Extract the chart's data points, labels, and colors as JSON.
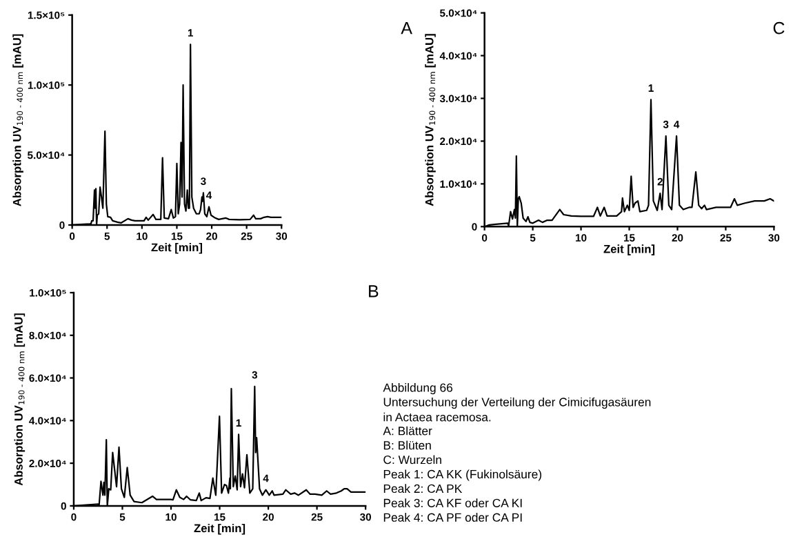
{
  "chart_data": [
    {
      "type": "line",
      "xlabel": "Zeit [min]",
      "ylabel": "Absorption UV$_{190 - 400 nm}$ [mAU]",
      "x": [
        0,
        2.5,
        2.7,
        2.8,
        3.0,
        3.2,
        3.3,
        3.4,
        3.5,
        3.6,
        3.8,
        4.0,
        4.2,
        4.4,
        4.7,
        4.9,
        5.1,
        5.5,
        5.8,
        6.5,
        7,
        8,
        8.5,
        9,
        10.3,
        10.6,
        10.9,
        11.6,
        12,
        12.7,
        12.95,
        13.2,
        13.8,
        14.2,
        14.5,
        14.8,
        15.0,
        15.2,
        15.4,
        15.6,
        15.75,
        15.9,
        16.1,
        16.3,
        16.5,
        16.65,
        16.8,
        16.95,
        17.15,
        17.4,
        17.8,
        18.2,
        18.4,
        18.6,
        18.7,
        18.8,
        19.0,
        19.3,
        19.6,
        19.9,
        20.5,
        21,
        22,
        22.5,
        24,
        25.5,
        26,
        26.3,
        27,
        27.5,
        28,
        28.5,
        30
      ],
      "series": [
        {
          "color": "#000000",
          "values": [
            0,
            800,
            900,
            3000,
            3000,
            25000,
            12000,
            26000,
            0,
            7000,
            8000,
            27000,
            20000,
            12000,
            67000,
            15000,
            6000,
            5500,
            3000,
            2000,
            1500,
            4500,
            3500,
            3000,
            3000,
            5500,
            3500,
            7500,
            4000,
            4000,
            48000,
            5000,
            4500,
            11000,
            5000,
            6000,
            44000,
            8000,
            15000,
            59000,
            20000,
            100000,
            15000,
            10000,
            25000,
            12000,
            12000,
            129000,
            20000,
            12000,
            8000,
            8000,
            11000,
            20000,
            17000,
            23000,
            8000,
            6000,
            13000,
            7000,
            5000,
            4000,
            5000,
            4000,
            3800,
            4000,
            7000,
            4500,
            4500,
            5500,
            6000,
            5500,
            5500
          ]
        }
      ],
      "xlim": [
        0,
        30
      ],
      "xticks": [
        0,
        5,
        10,
        15,
        20,
        25,
        30
      ],
      "ylim": [
        0,
        150000
      ],
      "yticks": [
        {
          "value": 0,
          "label": "0"
        },
        {
          "value": 50000,
          "label": "5.0×10⁴"
        },
        {
          "value": 100000,
          "label": "1.0×10⁵"
        },
        {
          "value": 150000,
          "label": "1.5×10⁵"
        }
      ],
      "annotations": [
        "A",
        {
          "text": "1",
          "x": 16.95,
          "y": 129000
        },
        {
          "text": "3",
          "x": 18.8,
          "y": 23000
        },
        {
          "text": "4",
          "x": 19.6,
          "y": 13000
        }
      ]
    },
    {
      "type": "line",
      "xlabel": "Zeit [min]",
      "ylabel": "Absorption UV$_{190 - 400 nm}$ [mAU]",
      "x": [
        0,
        0.5,
        1,
        2,
        2.4,
        2.5,
        2.7,
        2.9,
        3.1,
        3.2,
        3.3,
        3.4,
        3.5,
        3.6,
        3.8,
        4.0,
        4.3,
        4.5,
        4.7,
        5,
        5.6,
        6,
        6.5,
        7,
        7.8,
        8.2,
        9,
        10,
        11.3,
        11.7,
        12,
        12.4,
        12.7,
        13.7,
        14.2,
        14.3,
        14.5,
        14.8,
        15.0,
        15.2,
        15.4,
        15.6,
        15.9,
        16.1,
        16.8,
        17.0,
        17.25,
        17.5,
        17.9,
        18.2,
        18.4,
        18.8,
        19.1,
        19.4,
        19.9,
        20.2,
        20.6,
        21.2,
        21.5,
        21.9,
        22.2,
        22.5,
        22.8,
        23,
        24,
        25.5,
        25.9,
        26.2,
        27,
        28,
        29,
        29.6,
        30
      ],
      "series": [
        {
          "color": "#000000",
          "values": [
            0,
            400,
            500,
            700,
            800,
            200,
            3500,
            1800,
            4000,
            2000,
            16500,
            0,
            6500,
            7000,
            5500,
            2000,
            1200,
            2300,
            1000,
            800,
            1500,
            1000,
            1500,
            1500,
            4000,
            2800,
            2500,
            2400,
            2400,
            4500,
            2500,
            4500,
            2500,
            2500,
            3500,
            6700,
            3500,
            5000,
            3800,
            11800,
            4500,
            5500,
            6000,
            3500,
            3800,
            5000,
            29700,
            6000,
            3800,
            7800,
            4000,
            21200,
            5000,
            4000,
            21200,
            5000,
            4000,
            4500,
            4500,
            12800,
            5000,
            4200,
            5000,
            4000,
            4500,
            4500,
            6500,
            5000,
            5500,
            6000,
            6000,
            6500,
            6000
          ]
        }
      ],
      "xlim": [
        0,
        30
      ],
      "xticks": [
        0,
        5,
        10,
        15,
        20,
        25,
        30
      ],
      "ylim": [
        0,
        50000
      ],
      "yticks": [
        {
          "value": 0,
          "label": "0"
        },
        {
          "value": 10000,
          "label": "1.0×10⁴"
        },
        {
          "value": 20000,
          "label": "2.0×10⁴"
        },
        {
          "value": 30000,
          "label": "3.0×10⁴"
        },
        {
          "value": 40000,
          "label": "4.0×10⁴"
        },
        {
          "value": 50000,
          "label": "5.0×10⁴"
        }
      ],
      "annotations": [
        "C",
        {
          "text": "1",
          "x": 17.25,
          "y": 29700
        },
        {
          "text": "2",
          "x": 18.2,
          "y": 7800
        },
        {
          "text": "3",
          "x": 18.8,
          "y": 21200
        },
        {
          "text": "4",
          "x": 19.9,
          "y": 21200
        }
      ]
    },
    {
      "type": "line",
      "xlabel": "Zeit [min]",
      "ylabel": "Absorption UV$_{190 - 400 nm}$ [mAU]",
      "x": [
        0,
        2.5,
        2.6,
        2.8,
        3.0,
        3.1,
        3.2,
        3.35,
        3.45,
        3.6,
        3.8,
        4.0,
        4.4,
        4.65,
        4.9,
        5.2,
        5.5,
        5.8,
        6.2,
        7,
        8.1,
        8.5,
        10,
        10.2,
        10.55,
        10.9,
        11.3,
        11.6,
        12,
        12.6,
        12.9,
        13.1,
        13.6,
        14,
        14.3,
        14.6,
        14.98,
        15.2,
        15.5,
        15.7,
        15.9,
        16.05,
        16.1,
        16.2,
        16.4,
        16.6,
        16.8,
        16.95,
        17.15,
        17.35,
        17.55,
        17.8,
        18.1,
        18.4,
        18.6,
        18.7,
        18.8,
        19.1,
        19.4,
        19.75,
        20.1,
        20.4,
        20.6,
        21.5,
        21.8,
        22.3,
        22.7,
        23.1,
        23.9,
        24.3,
        24.8,
        25.5,
        26,
        26.4,
        27,
        27.5,
        27.8,
        28.1,
        28.5,
        30
      ],
      "series": [
        {
          "color": "#000000",
          "values": [
            0,
            800,
            0,
            11500,
            5000,
            11000,
            5000,
            31000,
            0,
            8000,
            7500,
            25000,
            9000,
            27500,
            8000,
            4000,
            18000,
            5000,
            2000,
            1500,
            4500,
            3000,
            3000,
            2800,
            7500,
            4000,
            3000,
            4500,
            2800,
            2500,
            6000,
            2500,
            3800,
            3500,
            13000,
            5000,
            42000,
            6000,
            10000,
            9500,
            6000,
            13000,
            8000,
            55000,
            9000,
            14000,
            7500,
            33500,
            9000,
            15000,
            8500,
            24000,
            6000,
            8000,
            56000,
            25000,
            32000,
            8000,
            5000,
            7500,
            5000,
            7000,
            5000,
            5500,
            7500,
            5500,
            6000,
            5000,
            7500,
            5500,
            5500,
            5000,
            7000,
            5500,
            6000,
            7000,
            8000,
            8000,
            6500,
            6500
          ]
        }
      ],
      "xlim": [
        0,
        30
      ],
      "xticks": [
        0,
        5,
        10,
        15,
        20,
        25,
        30
      ],
      "ylim": [
        0,
        100000
      ],
      "yticks": [
        {
          "value": 0,
          "label": "0"
        },
        {
          "value": 20000,
          "label": "2.0×10⁴"
        },
        {
          "value": 40000,
          "label": "4.0×10⁴"
        },
        {
          "value": 60000,
          "label": "6.0×10⁴"
        },
        {
          "value": 80000,
          "label": "8.0×10⁴"
        },
        {
          "value": 100000,
          "label": "1.0×10⁵"
        }
      ],
      "annotations": [
        "B",
        {
          "text": "1",
          "x": 16.95,
          "y": 33500
        },
        {
          "text": "3",
          "x": 18.6,
          "y": 56000
        },
        {
          "text": "4",
          "x": 19.75,
          "y": 7500
        }
      ]
    },
    {
      "type": "other",
      "annotations": [
        "Abbildung 66",
        "Untersuchung der Verteilung der Cimicifugasäuren\nin Actaea racemosa.",
        "A: Blätter",
        "B: Blüten",
        "C: Wurzeln",
        "Peak 1: CA KK (Fukinolsäure)",
        "Peak 2: CA PK",
        "Peak 3: CA KF oder CA KI",
        "Peak 4: CA PF oder CA PI"
      ]
    }
  ]
}
